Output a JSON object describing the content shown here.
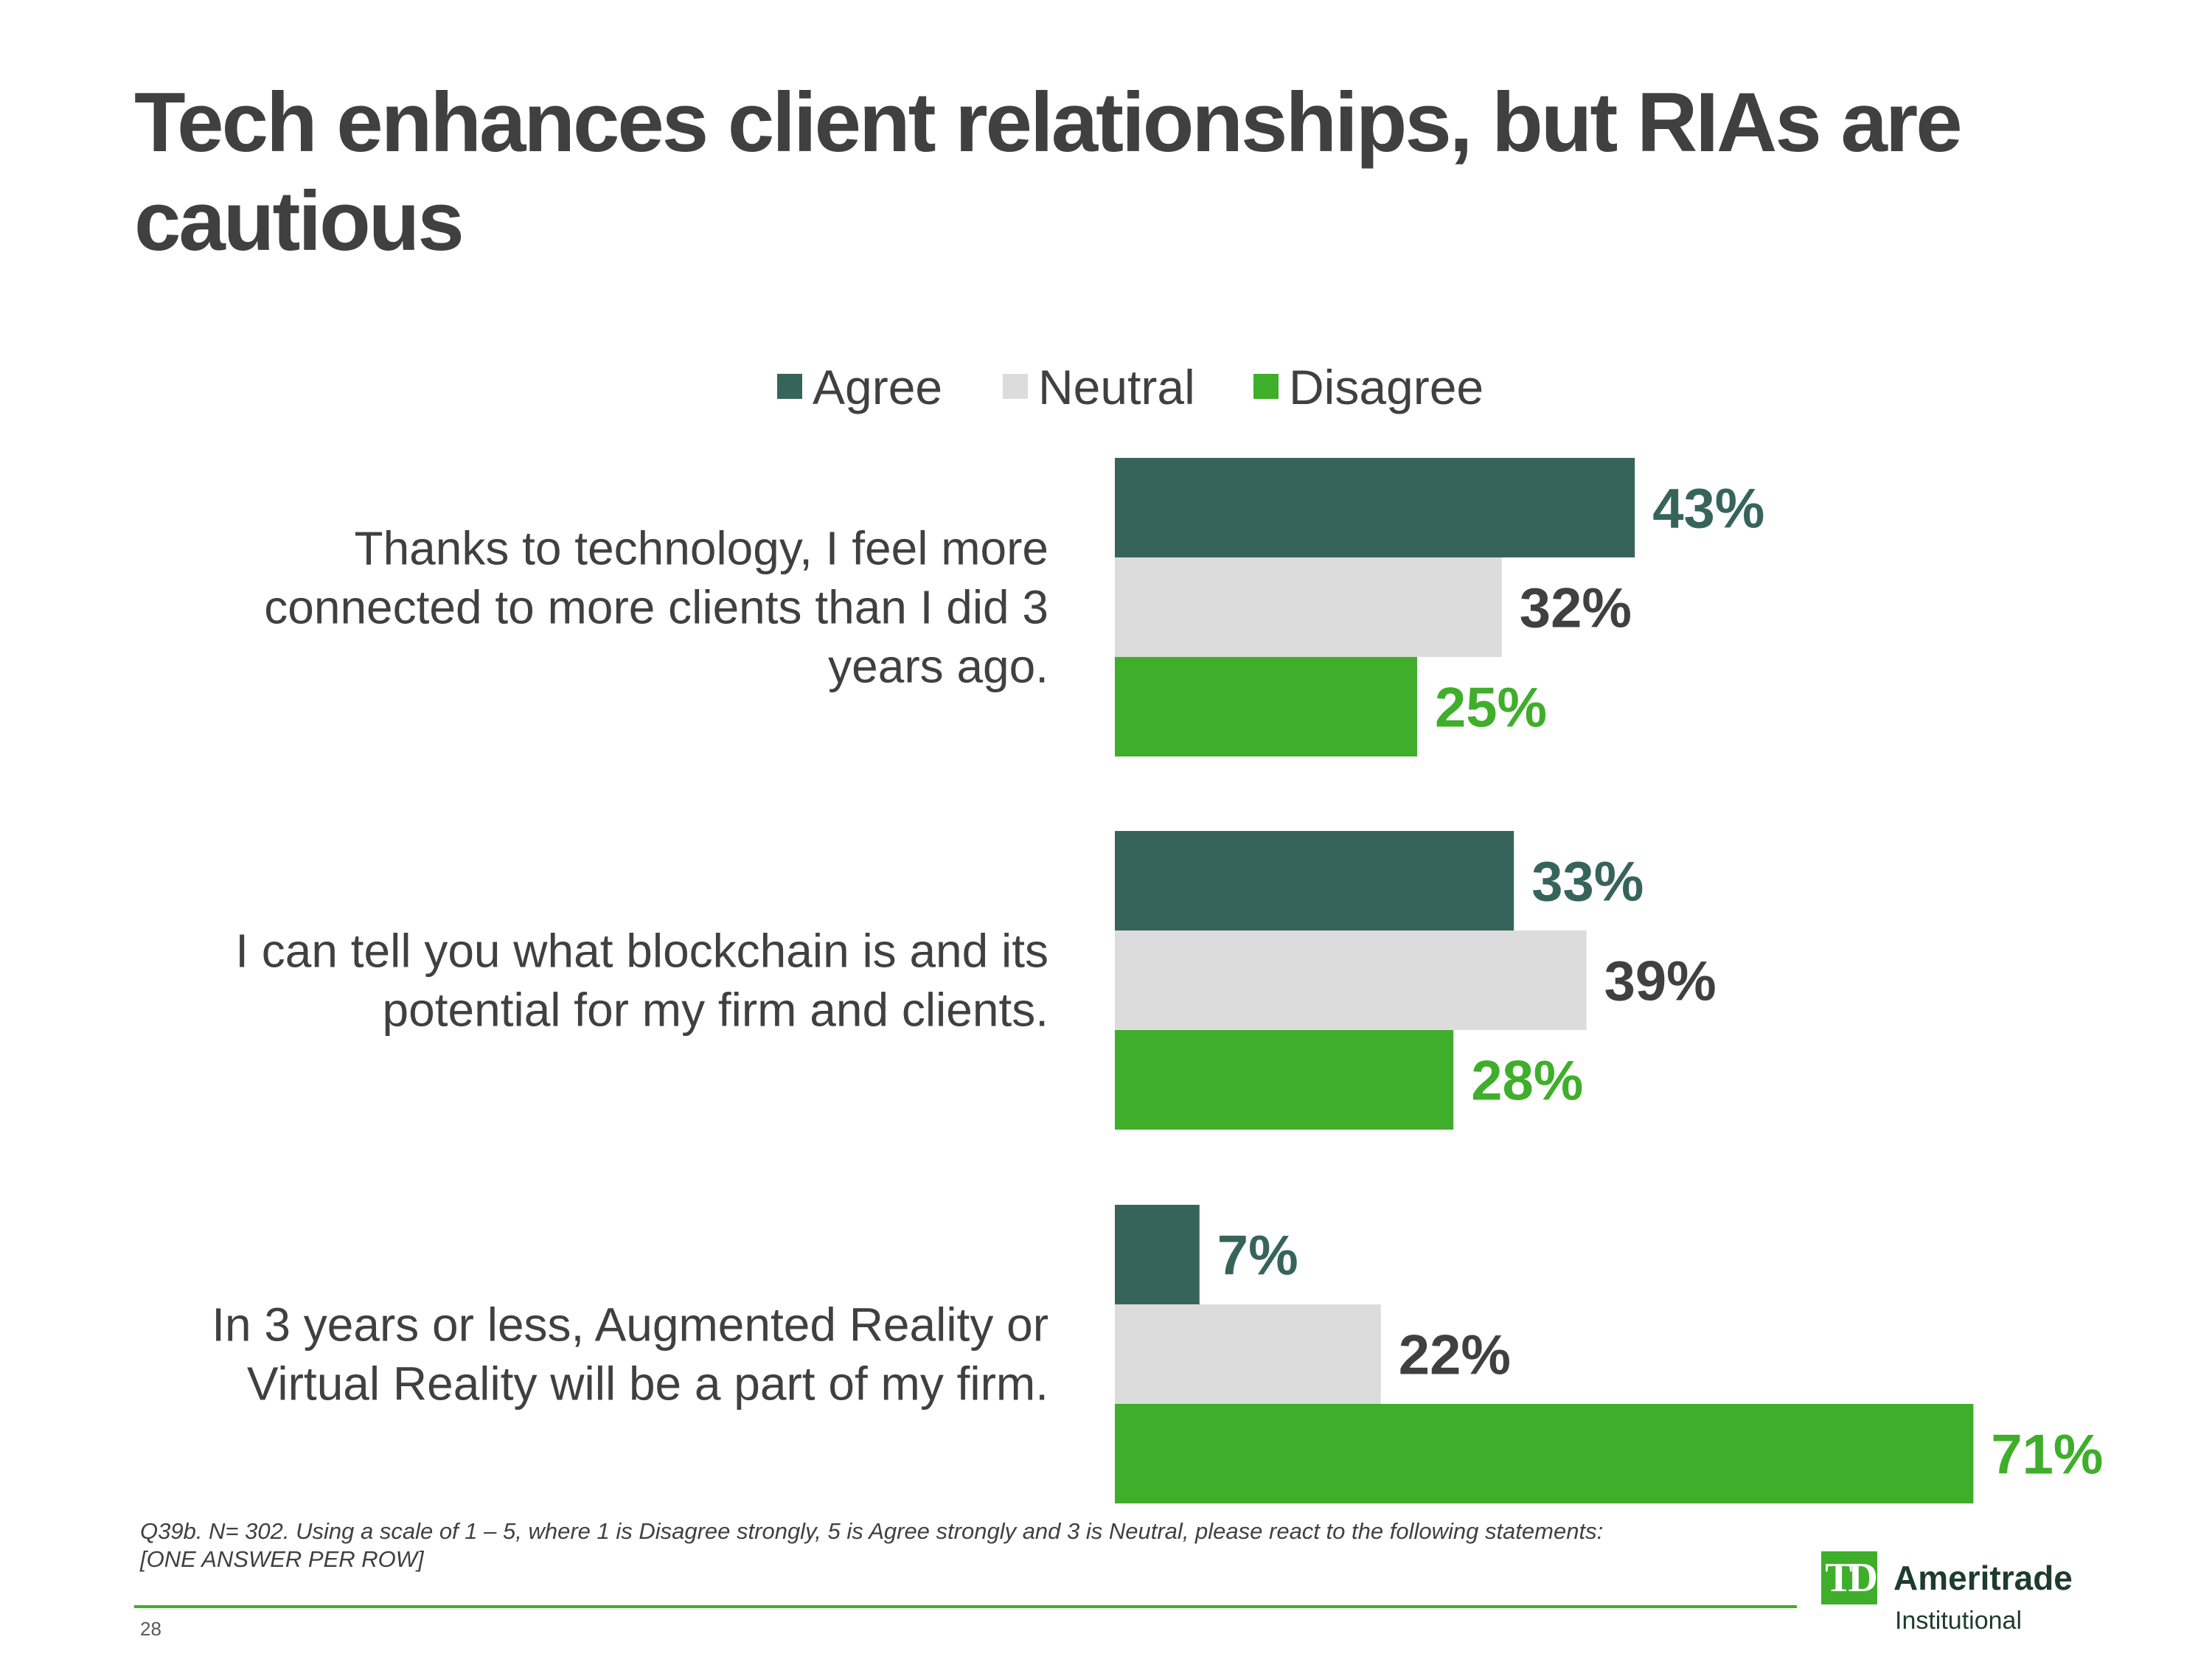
{
  "slide": {
    "title": "Tech enhances client relationships, but RIAs are cautious",
    "footnote": "Q39b. N= 302.  Using a scale of 1 – 5, where 1 is Disagree strongly, 5 is Agree strongly and 3 is Neutral, please react to the following statements: [ONE ANSWER PER ROW]",
    "page_number": "28"
  },
  "logo": {
    "mark": "TD",
    "wordmark": "Ameritrade",
    "subtext": "Institutional"
  },
  "colors": {
    "agree": "#37645a",
    "neutral": "#dcdcdc",
    "disagree": "#3fae2a",
    "neutral_label": "#404040",
    "text": "#404040"
  },
  "chart_data": {
    "type": "bar",
    "orientation": "horizontal",
    "title": "",
    "xlabel": "",
    "ylabel": "",
    "xlim": [
      0,
      100
    ],
    "grid": false,
    "legend_placement": "top",
    "categories": [
      [
        "Thanks to technology, I feel more",
        "connected to more clients than I did 3",
        "years ago."
      ],
      [
        "I can tell you what blockchain is and its",
        "potential for my firm and clients."
      ],
      [
        "In 3 years or less, Augmented Reality or",
        "Virtual Reality will be a part of my firm."
      ]
    ],
    "series": [
      {
        "name": "Agree",
        "values": [
          43,
          33,
          7
        ],
        "labels": [
          "43%",
          "33%",
          "7%"
        ]
      },
      {
        "name": "Neutral",
        "values": [
          32,
          39,
          22
        ],
        "labels": [
          "32%",
          "39%",
          "22%"
        ]
      },
      {
        "name": "Disagree",
        "values": [
          25,
          28,
          71
        ],
        "labels": [
          "25%",
          "28%",
          "71%"
        ]
      }
    ]
  }
}
